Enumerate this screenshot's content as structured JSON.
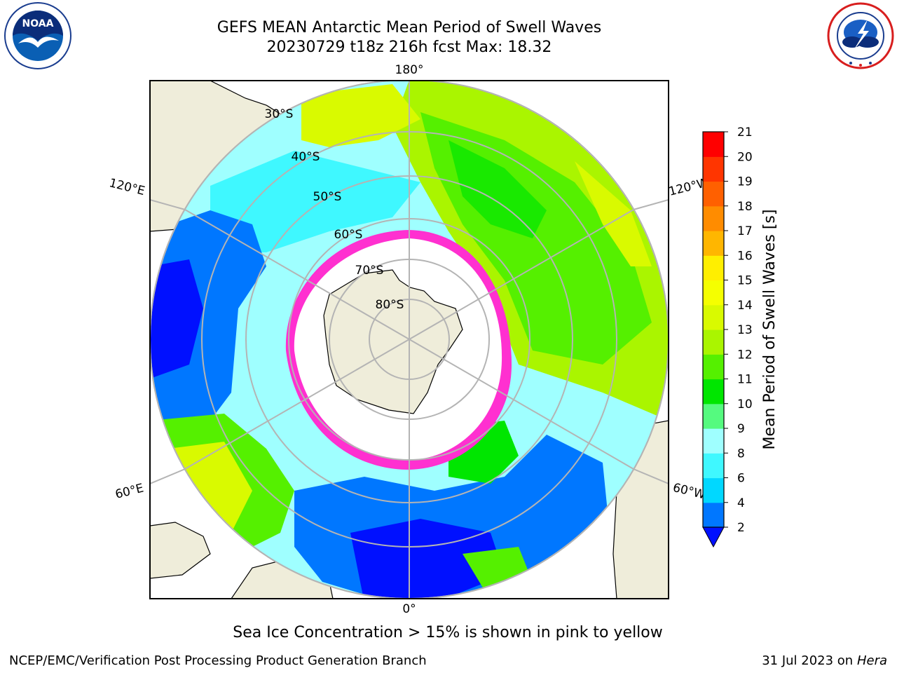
{
  "title_line1": "GEFS MEAN Antarctic Mean Period of Swell Waves",
  "title_line2": "20230729 t18z 216h fcst   Max: 18.32",
  "logos": {
    "noaa_text": "NOAA",
    "noaa_icon": "noaa-seagull-icon",
    "nws_icon": "nws-lightning-icon"
  },
  "map": {
    "projection": "south-polar-stereographic",
    "lon_labels": {
      "top": "180°",
      "bottom": "0°",
      "left_upper": "120°E",
      "left_lower": "60°E",
      "right_upper": "120°W",
      "right_lower": "60°W"
    },
    "lat_labels": [
      "30°S",
      "40°S",
      "50°S",
      "60°S",
      "70°S",
      "80°S"
    ],
    "colors": {
      "land": "#efedda",
      "ocean_open": "#ffffff",
      "sea_ice_edge_pink": "#ff30d0",
      "graticule": "#b4b4b4"
    }
  },
  "colorbar": {
    "label": "Mean Period of Swell Waves [s]",
    "ticks": [
      "2",
      "4",
      "6",
      "8",
      "9",
      "10",
      "11",
      "12",
      "13",
      "14",
      "15",
      "16",
      "17",
      "18",
      "19",
      "20",
      "21"
    ],
    "colors": [
      "#0077ff",
      "#00d8ff",
      "#3ff8ff",
      "#9fffff",
      "#55fa7f",
      "#00e600",
      "#55f000",
      "#aaf500",
      "#d9fa00",
      "#f5ff00",
      "#ffef00",
      "#ffb600",
      "#ff8c00",
      "#ff6000",
      "#ff3500",
      "#ff0000"
    ],
    "under_color": "#0010ff"
  },
  "footnote": "Sea Ice Concentration > 15% is shown in pink to yellow",
  "footer_left": "NCEP/EMC/Verification Post Processing Product Generation Branch",
  "footer_date": "31 Jul 2023 on ",
  "footer_host": "Hera"
}
